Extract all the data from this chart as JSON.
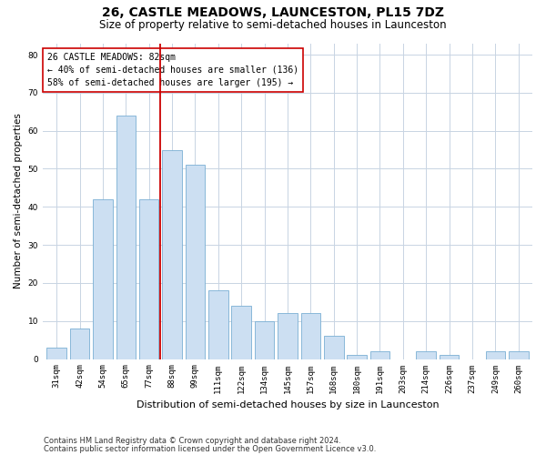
{
  "title": "26, CASTLE MEADOWS, LAUNCESTON, PL15 7DZ",
  "subtitle": "Size of property relative to semi-detached houses in Launceston",
  "xlabel": "Distribution of semi-detached houses by size in Launceston",
  "ylabel": "Number of semi-detached properties",
  "categories": [
    "31sqm",
    "42sqm",
    "54sqm",
    "65sqm",
    "77sqm",
    "88sqm",
    "99sqm",
    "111sqm",
    "122sqm",
    "134sqm",
    "145sqm",
    "157sqm",
    "168sqm",
    "180sqm",
    "191sqm",
    "203sqm",
    "214sqm",
    "226sqm",
    "237sqm",
    "249sqm",
    "260sqm"
  ],
  "values": [
    3,
    8,
    42,
    64,
    42,
    55,
    51,
    18,
    14,
    10,
    12,
    12,
    6,
    1,
    2,
    0,
    2,
    1,
    0,
    2,
    2
  ],
  "bar_color": "#ccdff2",
  "bar_edge_color": "#7aafd4",
  "property_line_x": 4.5,
  "annotation_text": "26 CASTLE MEADOWS: 82sqm\n← 40% of semi-detached houses are smaller (136)\n58% of semi-detached houses are larger (195) →",
  "annotation_box_color": "#ffffff",
  "annotation_box_edge": "#cc0000",
  "vline_color": "#cc0000",
  "ylim": [
    0,
    83
  ],
  "yticks": [
    0,
    10,
    20,
    30,
    40,
    50,
    60,
    70,
    80
  ],
  "grid_color": "#c8d4e3",
  "footer1": "Contains HM Land Registry data © Crown copyright and database right 2024.",
  "footer2": "Contains public sector information licensed under the Open Government Licence v3.0.",
  "title_fontsize": 10,
  "subtitle_fontsize": 8.5,
  "xlabel_fontsize": 8,
  "ylabel_fontsize": 7.5,
  "tick_fontsize": 6.5,
  "annotation_fontsize": 7,
  "footer_fontsize": 6,
  "background_color": "#ffffff"
}
